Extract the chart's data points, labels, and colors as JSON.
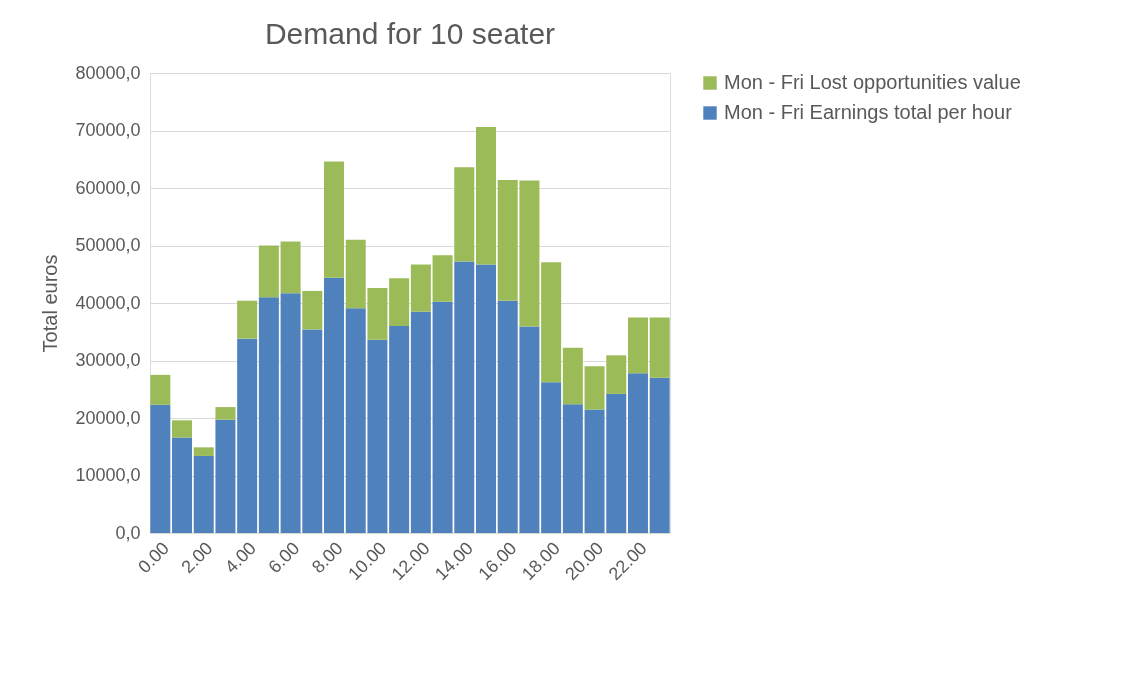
{
  "chart_data": {
    "type": "bar",
    "title": "Demand for 10 seater",
    "ylabel": "Total euros",
    "categories": [
      "0.00",
      null,
      "2.00",
      null,
      "4.00",
      null,
      "6.00",
      null,
      "8.00",
      null,
      "10.00",
      null,
      "12.00",
      null,
      "14.00",
      null,
      "16.00",
      null,
      "18.00",
      null,
      "20.00",
      null,
      "22.00",
      null
    ],
    "stacked": true,
    "series": [
      {
        "name": "Mon - Fri Earnings total per hour",
        "color": "#4f81bd",
        "values": [
          22300,
          16600,
          13400,
          19700,
          33800,
          41000,
          41700,
          35400,
          44400,
          39100,
          33600,
          36000,
          38500,
          40200,
          47200,
          46700,
          40400,
          35900,
          26200,
          22400,
          21500,
          24200,
          27800,
          27000
        ]
      },
      {
        "name": "Mon - Fri Lost opportunities value",
        "color": "#9bbb59",
        "values": [
          5200,
          3000,
          1500,
          2200,
          6600,
          9000,
          9000,
          6700,
          20200,
          11900,
          9000,
          8300,
          8200,
          8100,
          16400,
          23900,
          21000,
          25400,
          20900,
          9800,
          7500,
          6700,
          9700,
          10500
        ]
      }
    ],
    "ylim": [
      0,
      80000
    ],
    "yticks": [
      {
        "value": 0,
        "label": "0,0"
      },
      {
        "value": 10000,
        "label": "10000,0"
      },
      {
        "value": 20000,
        "label": "20000,0"
      },
      {
        "value": 30000,
        "label": "30000,0"
      },
      {
        "value": 40000,
        "label": "40000,0"
      },
      {
        "value": 50000,
        "label": "50000,0"
      },
      {
        "value": 60000,
        "label": "60000,0"
      },
      {
        "value": 70000,
        "label": "70000,0"
      },
      {
        "value": 80000,
        "label": "80000,0"
      }
    ],
    "grid": "y",
    "legend": "right"
  }
}
